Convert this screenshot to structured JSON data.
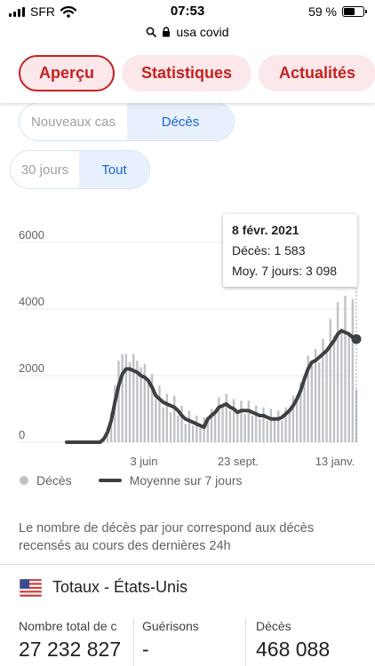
{
  "status": {
    "carrier": "SFR",
    "time": "07:53",
    "battery": "59 %",
    "battery_level": 0.59
  },
  "url_bar": {
    "url": "usa covid"
  },
  "tabs": [
    {
      "label": "Aperçu",
      "active": true
    },
    {
      "label": "Statistiques",
      "active": false
    },
    {
      "label": "Actualités",
      "active": false
    }
  ],
  "metric_toggle": {
    "options": [
      "Nouveaux cas",
      "Décès"
    ],
    "selected": "Décès"
  },
  "range_toggle": {
    "options": [
      "30 jours",
      "Tout"
    ],
    "selected": "Tout"
  },
  "tooltip": {
    "date": "8 févr. 2021",
    "deaths_line": "Décès: 1 583",
    "avg_line": "Moy. 7 jours: 3 098"
  },
  "chart_data": {
    "type": "bar",
    "title": "",
    "xlabel": "",
    "ylabel": "",
    "ylim": [
      0,
      6500
    ],
    "y_ticks": [
      "0",
      "2000",
      "4000",
      "6000"
    ],
    "y_tick_values": [
      0,
      2000,
      4000,
      6000
    ],
    "x_ticks": [
      "3 juin",
      "23 sept.",
      "13 janv."
    ],
    "grid": true,
    "legend": "bottom",
    "colors": {
      "bars": "#bdc1c6",
      "average": "#3c4043",
      "grid": "#e8eaed",
      "axis_text": "#5f6368"
    },
    "series": [
      {
        "name": "Moyenne sur 7 jours",
        "kind": "line",
        "values": [
          0,
          0,
          0,
          0,
          0,
          0,
          0,
          0,
          0,
          0,
          100,
          300,
          650,
          1200,
          1700,
          2050,
          2200,
          2200,
          2150,
          2100,
          2000,
          1950,
          1850,
          1650,
          1400,
          1300,
          1200,
          1150,
          1100,
          1050,
          950,
          800,
          700,
          650,
          600,
          550,
          500,
          450,
          700,
          800,
          900,
          1050,
          1100,
          1150,
          1050,
          1000,
          900,
          950,
          950,
          950,
          900,
          850,
          800,
          800,
          750,
          700,
          700,
          700,
          750,
          850,
          950,
          1100,
          1300,
          1550,
          1900,
          2200,
          2400,
          2450,
          2550,
          2650,
          2750,
          2900,
          3050,
          3250,
          3350,
          3300,
          3250,
          3150,
          3098
        ]
      },
      {
        "name": "Décès",
        "kind": "bar",
        "values": [
          0,
          0,
          0,
          0,
          0,
          0,
          0,
          0,
          0,
          0,
          150,
          450,
          900,
          1700,
          2450,
          2650,
          2650,
          2400,
          2650,
          2450,
          2250,
          2350,
          1900,
          2050,
          1300,
          1700,
          1050,
          1450,
          900,
          1400,
          800,
          1100,
          550,
          950,
          500,
          800,
          450,
          750,
          750,
          1000,
          950,
          1350,
          1100,
          1450,
          950,
          1300,
          850,
          1250,
          850,
          1250,
          800,
          1100,
          700,
          1050,
          650,
          1000,
          700,
          950,
          650,
          1050,
          1000,
          1400,
          1350,
          1800,
          2000,
          2600,
          2300,
          2800,
          2400,
          3100,
          2700,
          3700,
          3200,
          4200,
          3400,
          4400,
          3200,
          4300,
          1583
        ]
      }
    ]
  },
  "legend": {
    "bars_label": "Décès",
    "line_label": "Moyenne sur 7 jours"
  },
  "note": "Le nombre de décès par jour correspond aux décès recensés au cours des dernières 24h",
  "totals": {
    "title": "Totaux - États-Unis",
    "cases_label": "Nombre total de c",
    "cases_value": "27 232 827",
    "recovered_label": "Guérisons",
    "recovered_value": "-",
    "deaths_label": "Décès",
    "deaths_value": "468 088"
  }
}
